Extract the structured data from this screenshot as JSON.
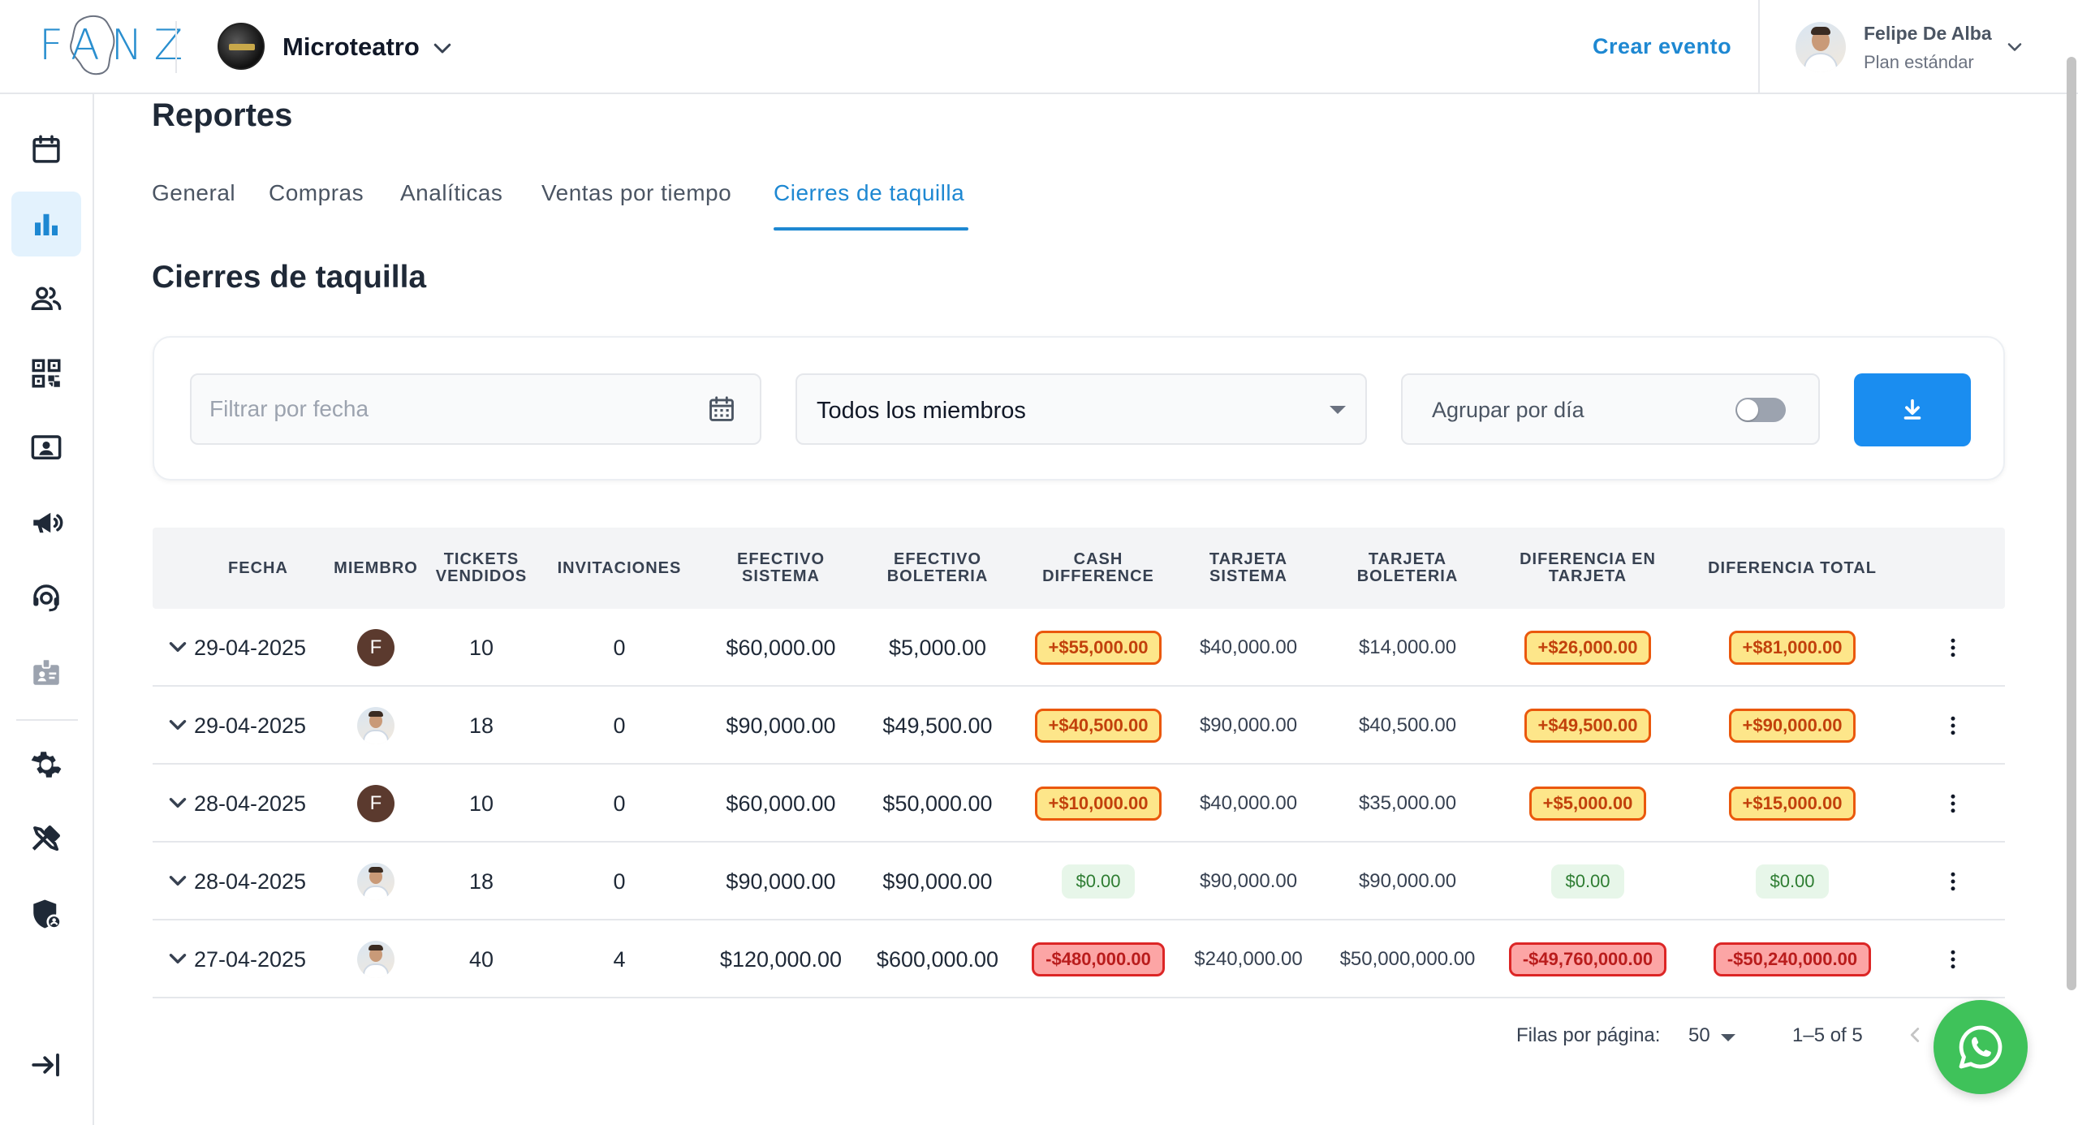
{
  "app": {
    "logo_text": "FANZ",
    "organization": "Microteatro",
    "create_event_label": "Crear evento",
    "user": {
      "name": "Felipe De Alba",
      "plan": "Plan estándar"
    }
  },
  "sidebar": {
    "items": [
      {
        "icon": "calendar-icon",
        "active": false
      },
      {
        "icon": "bar-chart-icon",
        "active": true
      },
      {
        "icon": "people-icon",
        "active": false
      },
      {
        "icon": "qr-code-icon",
        "active": false
      },
      {
        "icon": "contact-card-icon",
        "active": false
      },
      {
        "icon": "megaphone-icon",
        "active": false
      },
      {
        "icon": "support-agent-icon",
        "active": false
      },
      {
        "icon": "badge-icon",
        "active": false
      },
      {
        "icon": "gear-icon",
        "active": false
      },
      {
        "icon": "tools-icon",
        "active": false
      },
      {
        "icon": "shield-user-icon",
        "active": false
      },
      {
        "icon": "collapse-icon",
        "active": false
      }
    ]
  },
  "page": {
    "title": "Reportes",
    "tabs": [
      {
        "label": "General",
        "active": false
      },
      {
        "label": "Compras",
        "active": false
      },
      {
        "label": "Analíticas",
        "active": false
      },
      {
        "label": "Ventas por tiempo",
        "active": false
      },
      {
        "label": "Cierres de taquilla",
        "active": true
      }
    ],
    "section_title": "Cierres de taquilla"
  },
  "filters": {
    "date_placeholder": "Filtrar por fecha",
    "member_select_value": "Todos los miembros",
    "group_by_day_label": "Agrupar por día",
    "group_by_day_on": false
  },
  "table": {
    "headers": [
      "FECHA",
      "MIEMBRO",
      "TICKETS VENDIDOS",
      "INVITACIONES",
      "EFECTIVO SISTEMA",
      "EFECTIVO BOLETERIA",
      "CASH DIFFERENCE",
      "TARJETA SISTEMA",
      "TARJETA BOLETERIA",
      "DIFERENCIA EN TARJETA",
      "DIFERENCIA TOTAL"
    ],
    "rows": [
      {
        "fecha": "29-04-2025",
        "miembro": {
          "type": "letter",
          "initial": "F"
        },
        "tickets": "10",
        "invitaciones": "0",
        "efectivo_sistema": "$60,000.00",
        "efectivo_boleteria": "$5,000.00",
        "cash_difference": {
          "text": "+$55,000.00",
          "status": "warn"
        },
        "tarjeta_sistema": "$40,000.00",
        "tarjeta_boleteria": "$14,000.00",
        "diferencia_tarjeta": {
          "text": "+$26,000.00",
          "status": "warn"
        },
        "diferencia_total": {
          "text": "+$81,000.00",
          "status": "warn"
        }
      },
      {
        "fecha": "29-04-2025",
        "miembro": {
          "type": "photo",
          "initial": ""
        },
        "tickets": "18",
        "invitaciones": "0",
        "efectivo_sistema": "$90,000.00",
        "efectivo_boleteria": "$49,500.00",
        "cash_difference": {
          "text": "+$40,500.00",
          "status": "warn"
        },
        "tarjeta_sistema": "$90,000.00",
        "tarjeta_boleteria": "$40,500.00",
        "diferencia_tarjeta": {
          "text": "+$49,500.00",
          "status": "warn"
        },
        "diferencia_total": {
          "text": "+$90,000.00",
          "status": "warn"
        }
      },
      {
        "fecha": "28-04-2025",
        "miembro": {
          "type": "letter",
          "initial": "F"
        },
        "tickets": "10",
        "invitaciones": "0",
        "efectivo_sistema": "$60,000.00",
        "efectivo_boleteria": "$50,000.00",
        "cash_difference": {
          "text": "+$10,000.00",
          "status": "warn"
        },
        "tarjeta_sistema": "$40,000.00",
        "tarjeta_boleteria": "$35,000.00",
        "diferencia_tarjeta": {
          "text": "+$5,000.00",
          "status": "warn"
        },
        "diferencia_total": {
          "text": "+$15,000.00",
          "status": "warn"
        }
      },
      {
        "fecha": "28-04-2025",
        "miembro": {
          "type": "photo",
          "initial": ""
        },
        "tickets": "18",
        "invitaciones": "0",
        "efectivo_sistema": "$90,000.00",
        "efectivo_boleteria": "$90,000.00",
        "cash_difference": {
          "text": "$0.00",
          "status": "ok"
        },
        "tarjeta_sistema": "$90,000.00",
        "tarjeta_boleteria": "$90,000.00",
        "diferencia_tarjeta": {
          "text": "$0.00",
          "status": "ok"
        },
        "diferencia_total": {
          "text": "$0.00",
          "status": "ok"
        }
      },
      {
        "fecha": "27-04-2025",
        "miembro": {
          "type": "photo",
          "initial": ""
        },
        "tickets": "40",
        "invitaciones": "4",
        "efectivo_sistema": "$120,000.00",
        "efectivo_boleteria": "$600,000.00",
        "cash_difference": {
          "text": "-$480,000.00",
          "status": "bad"
        },
        "tarjeta_sistema": "$240,000.00",
        "tarjeta_boleteria": "$50,000,000.00",
        "diferencia_tarjeta": {
          "text": "-$49,760,000.00",
          "status": "bad"
        },
        "diferencia_total": {
          "text": "-$50,240,000.00",
          "status": "bad"
        }
      }
    ]
  },
  "pagination": {
    "rows_per_page_label": "Filas por página:",
    "rows_per_page": "50",
    "range": "1–5 of 5"
  },
  "colors": {
    "accent": "#1e88d2",
    "download_button": "#1a8df0",
    "warn_bg": "#fde68a",
    "warn_border": "#ea580c",
    "ok_bg": "#e7f6e9",
    "bad_bg": "#fca5a5",
    "bad_border": "#dc2626",
    "whatsapp": "#3fc25a"
  }
}
